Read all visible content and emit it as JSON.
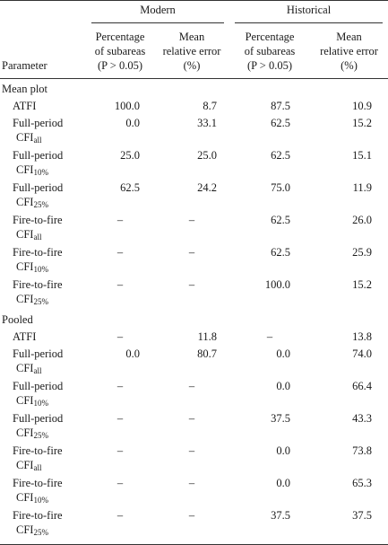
{
  "header": {
    "parameter": "Parameter",
    "groups": [
      "Modern",
      "Historical"
    ],
    "columns": [
      [
        "Percentage",
        "of subareas",
        "(P > 0.05)"
      ],
      [
        "Mean",
        "relative error",
        "(%)"
      ],
      [
        "Percentage",
        "of subareas",
        "(P > 0.05)"
      ],
      [
        "Mean",
        "relative error",
        "(%)"
      ]
    ]
  },
  "sections": [
    {
      "title": "Mean plot",
      "rows": [
        {
          "name": "ATFI",
          "sub_base": "",
          "sub_suffix": "",
          "values": [
            "100.0",
            "8.7",
            "87.5",
            "10.9"
          ]
        },
        {
          "name": "Full-period",
          "sub_base": "CFI",
          "sub_suffix": "all",
          "values": [
            "0.0",
            "33.1",
            "62.5",
            "15.2"
          ]
        },
        {
          "name": "Full-period",
          "sub_base": "CFI",
          "sub_suffix": "10%",
          "values": [
            "25.0",
            "25.0",
            "62.5",
            "15.1"
          ]
        },
        {
          "name": "Full-period",
          "sub_base": "CFI",
          "sub_suffix": "25%",
          "values": [
            "62.5",
            "24.2",
            "75.0",
            "11.9"
          ]
        },
        {
          "name": "Fire-to-fire",
          "sub_base": "CFI",
          "sub_suffix": "all",
          "values": [
            "–",
            "–",
            "62.5",
            "26.0"
          ]
        },
        {
          "name": "Fire-to-fire",
          "sub_base": "CFI",
          "sub_suffix": "10%",
          "values": [
            "–",
            "–",
            "62.5",
            "25.9"
          ]
        },
        {
          "name": "Fire-to-fire",
          "sub_base": "CFI",
          "sub_suffix": "25%",
          "values": [
            "–",
            "–",
            "100.0",
            "15.2"
          ]
        }
      ]
    },
    {
      "title": "Pooled",
      "rows": [
        {
          "name": "ATFI",
          "sub_base": "",
          "sub_suffix": "",
          "values": [
            "–",
            "11.8",
            "–",
            "13.8"
          ]
        },
        {
          "name": "Full-period",
          "sub_base": "CFI",
          "sub_suffix": "all",
          "values": [
            "0.0",
            "80.7",
            "0.0",
            "74.0"
          ]
        },
        {
          "name": "Full-period",
          "sub_base": "CFI",
          "sub_suffix": "10%",
          "values": [
            "–",
            "–",
            "0.0",
            "66.4"
          ]
        },
        {
          "name": "Full-period",
          "sub_base": "CFI",
          "sub_suffix": "25%",
          "values": [
            "–",
            "–",
            "37.5",
            "43.3"
          ]
        },
        {
          "name": "Fire-to-fire",
          "sub_base": "CFI",
          "sub_suffix": "all",
          "values": [
            "–",
            "–",
            "0.0",
            "73.8"
          ]
        },
        {
          "name": "Fire-to-fire",
          "sub_base": "CFI",
          "sub_suffix": "10%",
          "values": [
            "–",
            "–",
            "0.0",
            "65.3"
          ]
        },
        {
          "name": "Fire-to-fire",
          "sub_base": "CFI",
          "sub_suffix": "25%",
          "values": [
            "–",
            "–",
            "37.5",
            "37.5"
          ]
        }
      ]
    }
  ]
}
